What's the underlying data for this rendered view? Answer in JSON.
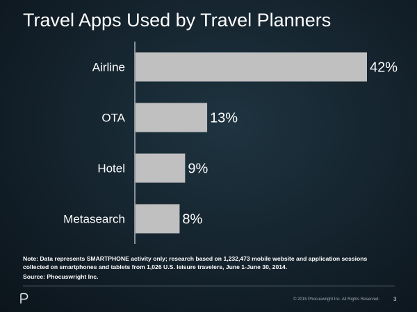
{
  "slide": {
    "title": "Travel Apps Used by Travel Planners",
    "note": "Note: Data represents SMARTPHONE activity only; research based on 1,232,473 mobile website and application sessions collected on smartphones and tablets from 1,026 U.S. leisure travelers, June 1-June 30, 2014.",
    "source": "Source: Phocuswright Inc.",
    "copyright": "© 2015 Phocuswright Inc. All Rights Reserved.",
    "page_number": "3",
    "logo_icon": "phocuswright-p-logo-icon"
  },
  "colors": {
    "bar": "#c0c0c0",
    "axis": "#ffffff",
    "text": "#ffffff"
  },
  "chart_data": {
    "type": "bar",
    "orientation": "horizontal",
    "title": "Travel Apps Used by Travel Planners",
    "categories": [
      "Airline",
      "OTA",
      "Hotel",
      "Metasearch"
    ],
    "values": [
      42,
      13,
      9,
      8
    ],
    "value_labels": [
      "42%",
      "13%",
      "9%",
      "8%"
    ],
    "unit": "%",
    "xlim": [
      0,
      42
    ],
    "grid": false,
    "legend": "none"
  }
}
